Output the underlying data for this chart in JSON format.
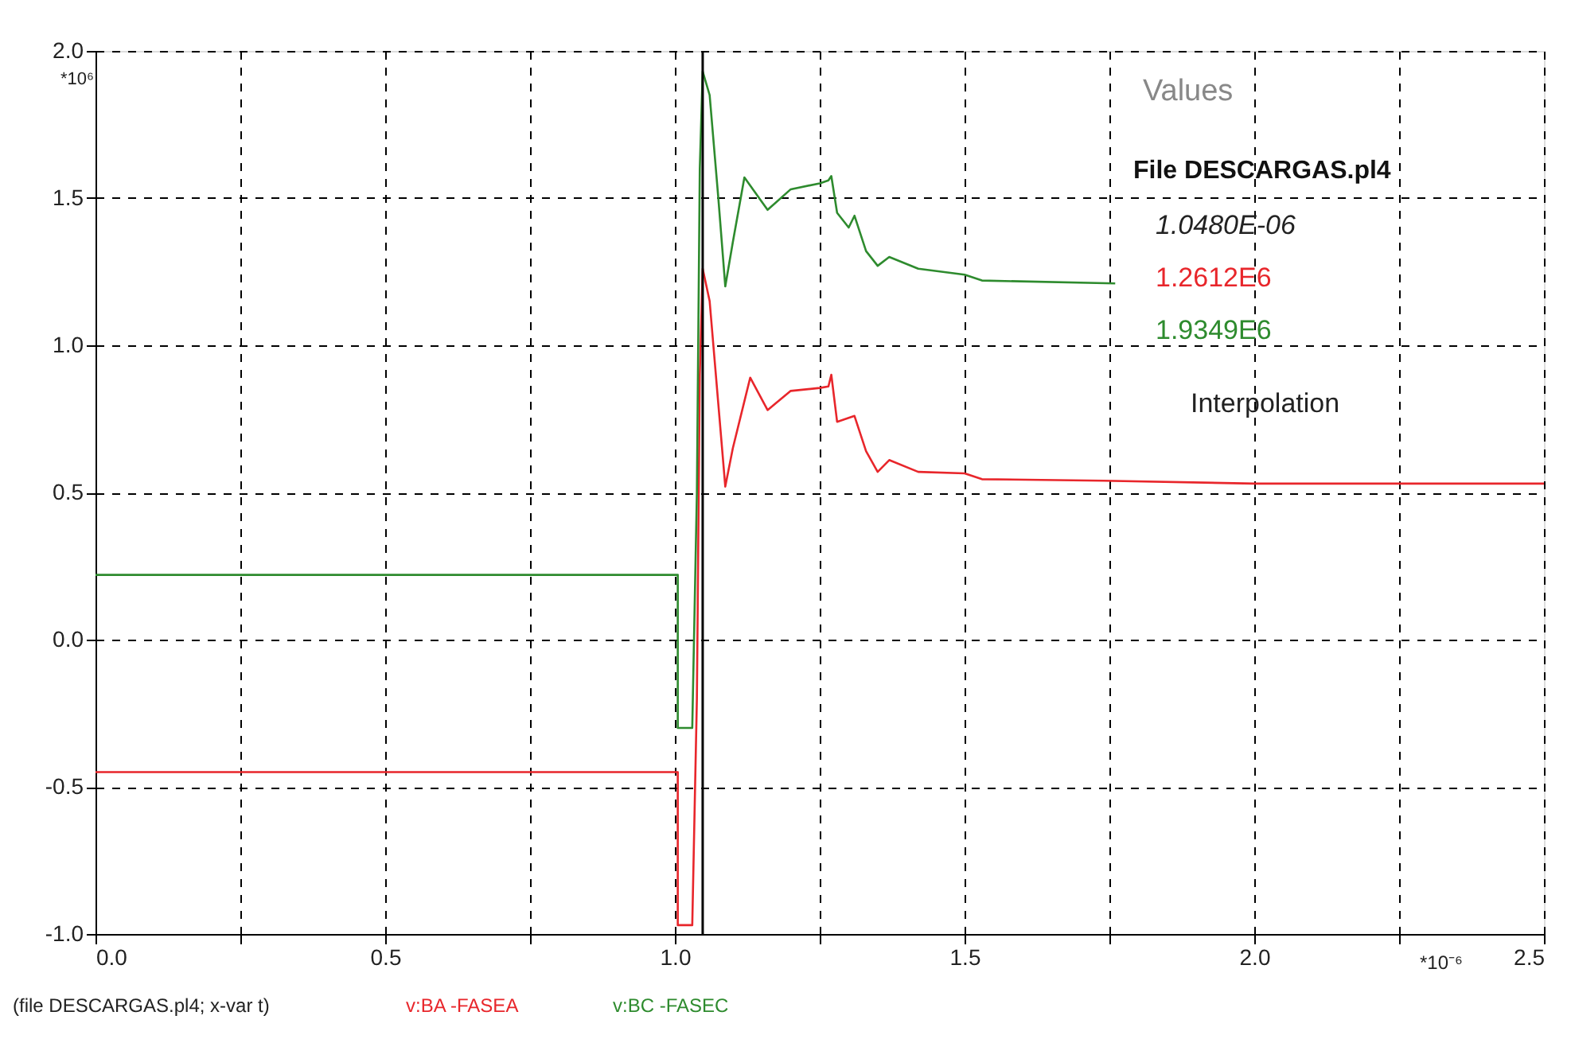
{
  "chart_data": {
    "type": "line",
    "xlim": [
      0,
      2.5
    ],
    "xticks": [
      {
        "value": 0,
        "label": "0.0"
      },
      {
        "value": 0.25,
        "label": null
      },
      {
        "value": 0.5,
        "label": "0.5"
      },
      {
        "value": 0.75,
        "label": null
      },
      {
        "value": 1,
        "label": "1.0"
      },
      {
        "value": 1.25,
        "label": null
      },
      {
        "value": 1.5,
        "label": "1.5"
      },
      {
        "value": 1.75,
        "label": null
      },
      {
        "value": 2,
        "label": "2.0"
      },
      {
        "value": 2.25,
        "label": null
      },
      {
        "value": 2.5,
        "label": "2.5"
      }
    ],
    "ylim": [
      -1,
      2
    ],
    "yticks": [
      {
        "value": -1,
        "label": "-1.0"
      },
      {
        "value": -0.5,
        "label": "-0.5"
      },
      {
        "value": 0,
        "label": "0.0"
      },
      {
        "value": 0.5,
        "label": "0.5"
      },
      {
        "value": 1,
        "label": "1.0"
      },
      {
        "value": 1.5,
        "label": "1.5"
      },
      {
        "value": 2,
        "label": "2.0"
      }
    ],
    "grid": true,
    "legend": "bottom",
    "marker": "none",
    "line_style": "solid",
    "series": [
      {
        "name": "v:BA    -FASEA",
        "color": "#e8262b",
        "x": [
          0,
          1.005,
          1.005,
          1.03,
          1.038,
          1.043,
          1.048,
          1.06,
          1.075,
          1.087,
          1.1,
          1.13,
          1.16,
          1.2,
          1.25,
          1.265,
          1.27,
          1.28,
          1.31,
          1.33,
          1.35,
          1.37,
          1.42,
          1.5,
          1.53,
          1.74,
          2.0,
          2.5
        ],
        "values": [
          -0.45,
          -0.45,
          -0.97,
          -0.97,
          -0.2,
          0.9,
          1.26,
          1.15,
          0.8,
          0.52,
          0.65,
          0.89,
          0.78,
          0.845,
          0.855,
          0.86,
          0.9,
          0.74,
          0.76,
          0.64,
          0.57,
          0.61,
          0.57,
          0.565,
          0.545,
          0.54,
          0.53,
          0.53
        ]
      },
      {
        "name": "v:BC    -FASEC",
        "color": "#2e8b2e",
        "x": [
          0,
          1.005,
          1.005,
          1.03,
          1.038,
          1.043,
          1.048,
          1.06,
          1.075,
          1.087,
          1.1,
          1.12,
          1.16,
          1.2,
          1.25,
          1.265,
          1.27,
          1.28,
          1.3,
          1.31,
          1.33,
          1.35,
          1.37,
          1.42,
          1.5,
          1.53,
          1.76
        ],
        "values": [
          0.22,
          0.22,
          -0.3,
          -0.3,
          0.5,
          1.6,
          1.93,
          1.85,
          1.5,
          1.2,
          1.35,
          1.57,
          1.46,
          1.53,
          1.55,
          1.56,
          1.575,
          1.45,
          1.4,
          1.44,
          1.32,
          1.27,
          1.3,
          1.26,
          1.24,
          1.22,
          1.21
        ]
      }
    ],
    "ref_lines": [
      {
        "axis": "x",
        "value": 1.048,
        "color": "#000000",
        "line_style": "solid"
      }
    ],
    "annotations": [
      "*10⁶",
      "*10⁻⁶",
      "(file DESCARGAS.pl4; x-var t)",
      "Values",
      "File DESCARGAS.pl4",
      "1.0480E-06",
      "1.2612E6",
      "1.9349E6",
      "Interpolation"
    ]
  }
}
